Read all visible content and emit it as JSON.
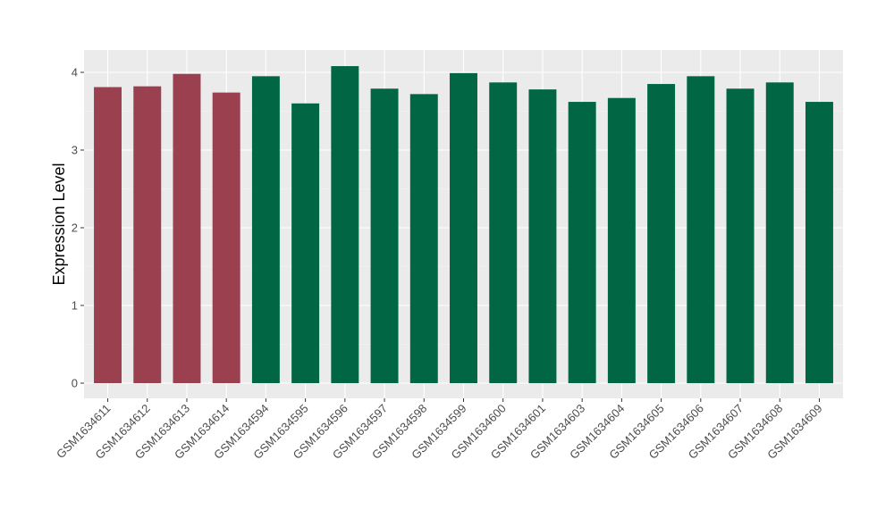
{
  "chart_data": {
    "type": "bar",
    "title": "",
    "xlabel": "",
    "ylabel": "Expression Level",
    "ylim": [
      0,
      4.2
    ],
    "y_ticks": [
      0,
      1,
      2,
      3,
      4
    ],
    "grid": true,
    "legend": "none",
    "categories": [
      "GSM1634611",
      "GSM1634612",
      "GSM1634613",
      "GSM1634614",
      "GSM1634594",
      "GSM1634595",
      "GSM1634596",
      "GSM1634597",
      "GSM1634598",
      "GSM1634599",
      "GSM1634600",
      "GSM1634601",
      "GSM1634603",
      "GSM1634604",
      "GSM1634605",
      "GSM1634606",
      "GSM1634607",
      "GSM1634608",
      "GSM1634609"
    ],
    "values": [
      3.81,
      3.82,
      3.98,
      3.74,
      3.95,
      3.6,
      4.08,
      3.79,
      3.72,
      3.99,
      3.87,
      3.78,
      3.62,
      3.67,
      3.85,
      3.95,
      3.79,
      3.87,
      3.62
    ],
    "groups": [
      1,
      1,
      1,
      1,
      2,
      2,
      2,
      2,
      2,
      2,
      2,
      2,
      2,
      2,
      2,
      2,
      2,
      2,
      2
    ],
    "colors": {
      "group_1": "#9a404f",
      "group_2": "#006644",
      "panel_background": "#ebebeb",
      "grid_major": "#ffffff",
      "grid_minor": "#f5f5f5",
      "tick_text": "#4d4d4d",
      "tick_mark": "#333333"
    }
  }
}
